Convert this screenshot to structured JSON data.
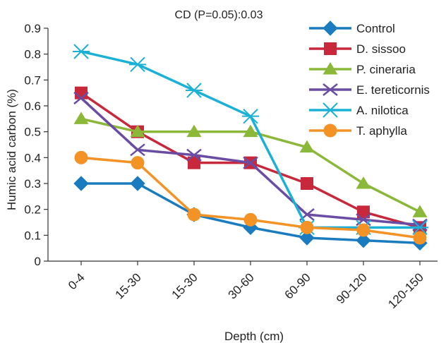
{
  "chart_data": {
    "type": "line",
    "title": "CD (P=0.05):0.03",
    "xlabel": "Depth (cm)",
    "ylabel": "Humic acid carbon (%)",
    "categories": [
      "0-4",
      "15-30",
      "15-30",
      "30-60",
      "60-90",
      "90-120",
      "120-150"
    ],
    "ylim": [
      0,
      0.9
    ],
    "yticks": [
      "0",
      "0.1",
      "0.2",
      "0.3",
      "0.4",
      "0.5",
      "0.6",
      "0.7",
      "0.8",
      "0.9"
    ],
    "grid": false,
    "legend_position": "top-right",
    "series": [
      {
        "name": "Control",
        "color": "#1a7bbf",
        "marker": "diamond",
        "values": [
          0.3,
          0.3,
          0.18,
          0.13,
          0.09,
          0.08,
          0.07
        ]
      },
      {
        "name": "D. sissoo",
        "color": "#c8283c",
        "marker": "square",
        "values": [
          0.65,
          0.5,
          0.38,
          0.38,
          0.3,
          0.19,
          0.13
        ]
      },
      {
        "name": "P. cineraria",
        "color": "#8cb83a",
        "marker": "triangle",
        "values": [
          0.55,
          0.5,
          0.5,
          0.5,
          0.44,
          0.3,
          0.19
        ]
      },
      {
        "name": "E. tereticornis",
        "color": "#6a4ca2",
        "marker": "x",
        "values": [
          0.63,
          0.43,
          0.41,
          0.38,
          0.18,
          0.16,
          0.14
        ]
      },
      {
        "name": "A. nilotica",
        "color": "#1bb0d6",
        "marker": "star",
        "values": [
          0.81,
          0.76,
          0.66,
          0.56,
          0.13,
          0.13,
          0.13
        ]
      },
      {
        "name": "T. aphylla",
        "color": "#f39326",
        "marker": "circle",
        "values": [
          0.4,
          0.38,
          0.18,
          0.16,
          0.13,
          0.12,
          0.09
        ]
      }
    ]
  }
}
